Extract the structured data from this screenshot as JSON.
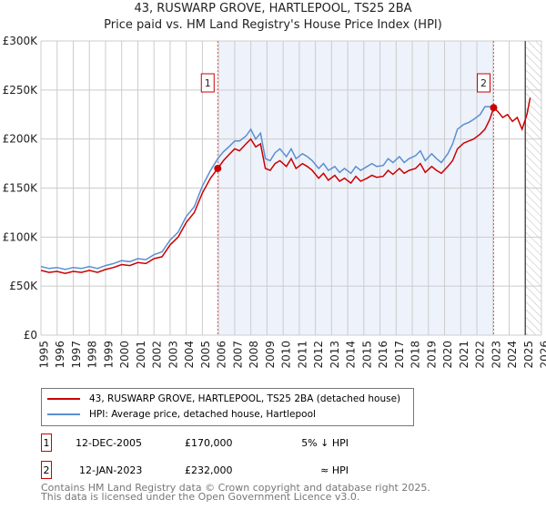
{
  "title": "43, RUSWARP GROVE, HARTLEPOOL, TS25 2BA",
  "subtitle": "Price paid vs. HM Land Registry's House Price Index (HPI)",
  "chart_data": {
    "type": "line",
    "xlim": [
      1995,
      2026
    ],
    "ylim": [
      0,
      300000
    ],
    "yticks": [
      {
        "v": 0,
        "label": "£0"
      },
      {
        "v": 50000,
        "label": "£50K"
      },
      {
        "v": 100000,
        "label": "£100K"
      },
      {
        "v": 150000,
        "label": "£150K"
      },
      {
        "v": 200000,
        "label": "£200K"
      },
      {
        "v": 250000,
        "label": "£250K"
      },
      {
        "v": 300000,
        "label": "£300K"
      }
    ],
    "xticks": [
      "1995",
      "1996",
      "1997",
      "1998",
      "1999",
      "2000",
      "2001",
      "2002",
      "2003",
      "2004",
      "2005",
      "2006",
      "2007",
      "2008",
      "2009",
      "2010",
      "2011",
      "2012",
      "2013",
      "2014",
      "2015",
      "2016",
      "2017",
      "2018",
      "2019",
      "2020",
      "2021",
      "2022",
      "2023",
      "2024",
      "2025",
      "2026"
    ],
    "shaded_range": [
      2005.95,
      2023.04
    ],
    "hatched_from": 2025.0,
    "series": [
      {
        "name": "43, RUSWARP GROVE, HARTLEPOOL, TS25 2BA (detached house)",
        "color": "#cc0000",
        "x": [
          1995,
          1995.5,
          1996,
          1996.5,
          1997,
          1997.5,
          1998,
          1998.5,
          1999,
          1999.5,
          2000,
          2000.5,
          2001,
          2001.5,
          2002,
          2002.5,
          2003,
          2003.5,
          2004,
          2004.5,
          2005,
          2005.5,
          2005.95,
          2006.3,
          2006.7,
          2007,
          2007.3,
          2007.7,
          2008,
          2008.3,
          2008.6,
          2008.9,
          2009.2,
          2009.5,
          2009.8,
          2010.2,
          2010.5,
          2010.8,
          2011.2,
          2011.5,
          2011.8,
          2012.2,
          2012.5,
          2012.8,
          2013.2,
          2013.5,
          2013.8,
          2014.2,
          2014.5,
          2014.8,
          2015.2,
          2015.5,
          2015.8,
          2016.2,
          2016.5,
          2016.8,
          2017.2,
          2017.5,
          2017.8,
          2018.2,
          2018.5,
          2018.8,
          2019.2,
          2019.5,
          2019.8,
          2020.2,
          2020.5,
          2020.8,
          2021.2,
          2021.5,
          2021.8,
          2022.2,
          2022.5,
          2022.8,
          2023.04,
          2023.3,
          2023.6,
          2023.9,
          2024.2,
          2024.5,
          2024.8,
          2025.1,
          2025.3
        ],
        "values": [
          66000,
          64000,
          65000,
          63000,
          65000,
          64000,
          66000,
          64000,
          67000,
          69000,
          72000,
          71000,
          74000,
          73000,
          78000,
          80000,
          92000,
          100000,
          115000,
          125000,
          145000,
          160000,
          170000,
          178000,
          185000,
          190000,
          188000,
          195000,
          200000,
          192000,
          195000,
          170000,
          168000,
          175000,
          178000,
          172000,
          180000,
          170000,
          175000,
          172000,
          168000,
          160000,
          165000,
          158000,
          163000,
          157000,
          160000,
          155000,
          162000,
          157000,
          160000,
          163000,
          161000,
          162000,
          168000,
          164000,
          170000,
          165000,
          168000,
          170000,
          175000,
          166000,
          172000,
          168000,
          165000,
          172000,
          178000,
          190000,
          196000,
          198000,
          200000,
          205000,
          210000,
          220000,
          232000,
          228000,
          222000,
          225000,
          218000,
          222000,
          210000,
          225000,
          242000
        ]
      },
      {
        "name": "HPI: Average price, detached house, Hartlepool",
        "color": "#5b8fd0",
        "x": [
          1995,
          1995.5,
          1996,
          1996.5,
          1997,
          1997.5,
          1998,
          1998.5,
          1999,
          1999.5,
          2000,
          2000.5,
          2001,
          2001.5,
          2002,
          2002.5,
          2003,
          2003.5,
          2004,
          2004.5,
          2005,
          2005.5,
          2005.95,
          2006.3,
          2006.7,
          2007,
          2007.3,
          2007.7,
          2008,
          2008.3,
          2008.6,
          2008.9,
          2009.2,
          2009.5,
          2009.8,
          2010.2,
          2010.5,
          2010.8,
          2011.2,
          2011.5,
          2011.8,
          2012.2,
          2012.5,
          2012.8,
          2013.2,
          2013.5,
          2013.8,
          2014.2,
          2014.5,
          2014.8,
          2015.2,
          2015.5,
          2015.8,
          2016.2,
          2016.5,
          2016.8,
          2017.2,
          2017.5,
          2017.8,
          2018.2,
          2018.5,
          2018.8,
          2019.2,
          2019.5,
          2019.8,
          2020.2,
          2020.5,
          2020.8,
          2021.2,
          2021.5,
          2021.8,
          2022.2,
          2022.5,
          2022.8,
          2023.04
        ],
        "values": [
          70000,
          68000,
          69000,
          67000,
          69000,
          68000,
          70000,
          68000,
          71000,
          73000,
          76000,
          75000,
          78000,
          77000,
          82000,
          85000,
          97000,
          105000,
          121000,
          131000,
          152000,
          168000,
          180000,
          187000,
          193000,
          198000,
          198000,
          203000,
          210000,
          200000,
          206000,
          180000,
          178000,
          186000,
          190000,
          182000,
          190000,
          180000,
          185000,
          182000,
          178000,
          170000,
          175000,
          168000,
          172000,
          166000,
          170000,
          165000,
          172000,
          168000,
          172000,
          175000,
          172000,
          173000,
          180000,
          176000,
          182000,
          176000,
          180000,
          183000,
          188000,
          178000,
          185000,
          180000,
          176000,
          185000,
          195000,
          210000,
          215000,
          217000,
          220000,
          225000,
          233000,
          233000,
          232000
        ]
      }
    ],
    "markers": [
      {
        "label": "1",
        "x": 2005.95,
        "y": 170000
      },
      {
        "label": "2",
        "x": 2023.04,
        "y": 232000
      }
    ]
  },
  "legend": {
    "red": "43, RUSWARP GROVE, HARTLEPOOL, TS25 2BA (detached house)",
    "blue": "HPI: Average price, detached house, Hartlepool"
  },
  "sales": [
    {
      "num": "1",
      "date": "12-DEC-2005",
      "price": "£170,000",
      "rel": "5% ↓ HPI"
    },
    {
      "num": "2",
      "date": "12-JAN-2023",
      "price": "£232,000",
      "rel": "≈ HPI"
    }
  ],
  "footer": {
    "line1": "Contains HM Land Registry data © Crown copyright and database right 2025.",
    "line2": "This data is licensed under the Open Government Licence v3.0."
  }
}
